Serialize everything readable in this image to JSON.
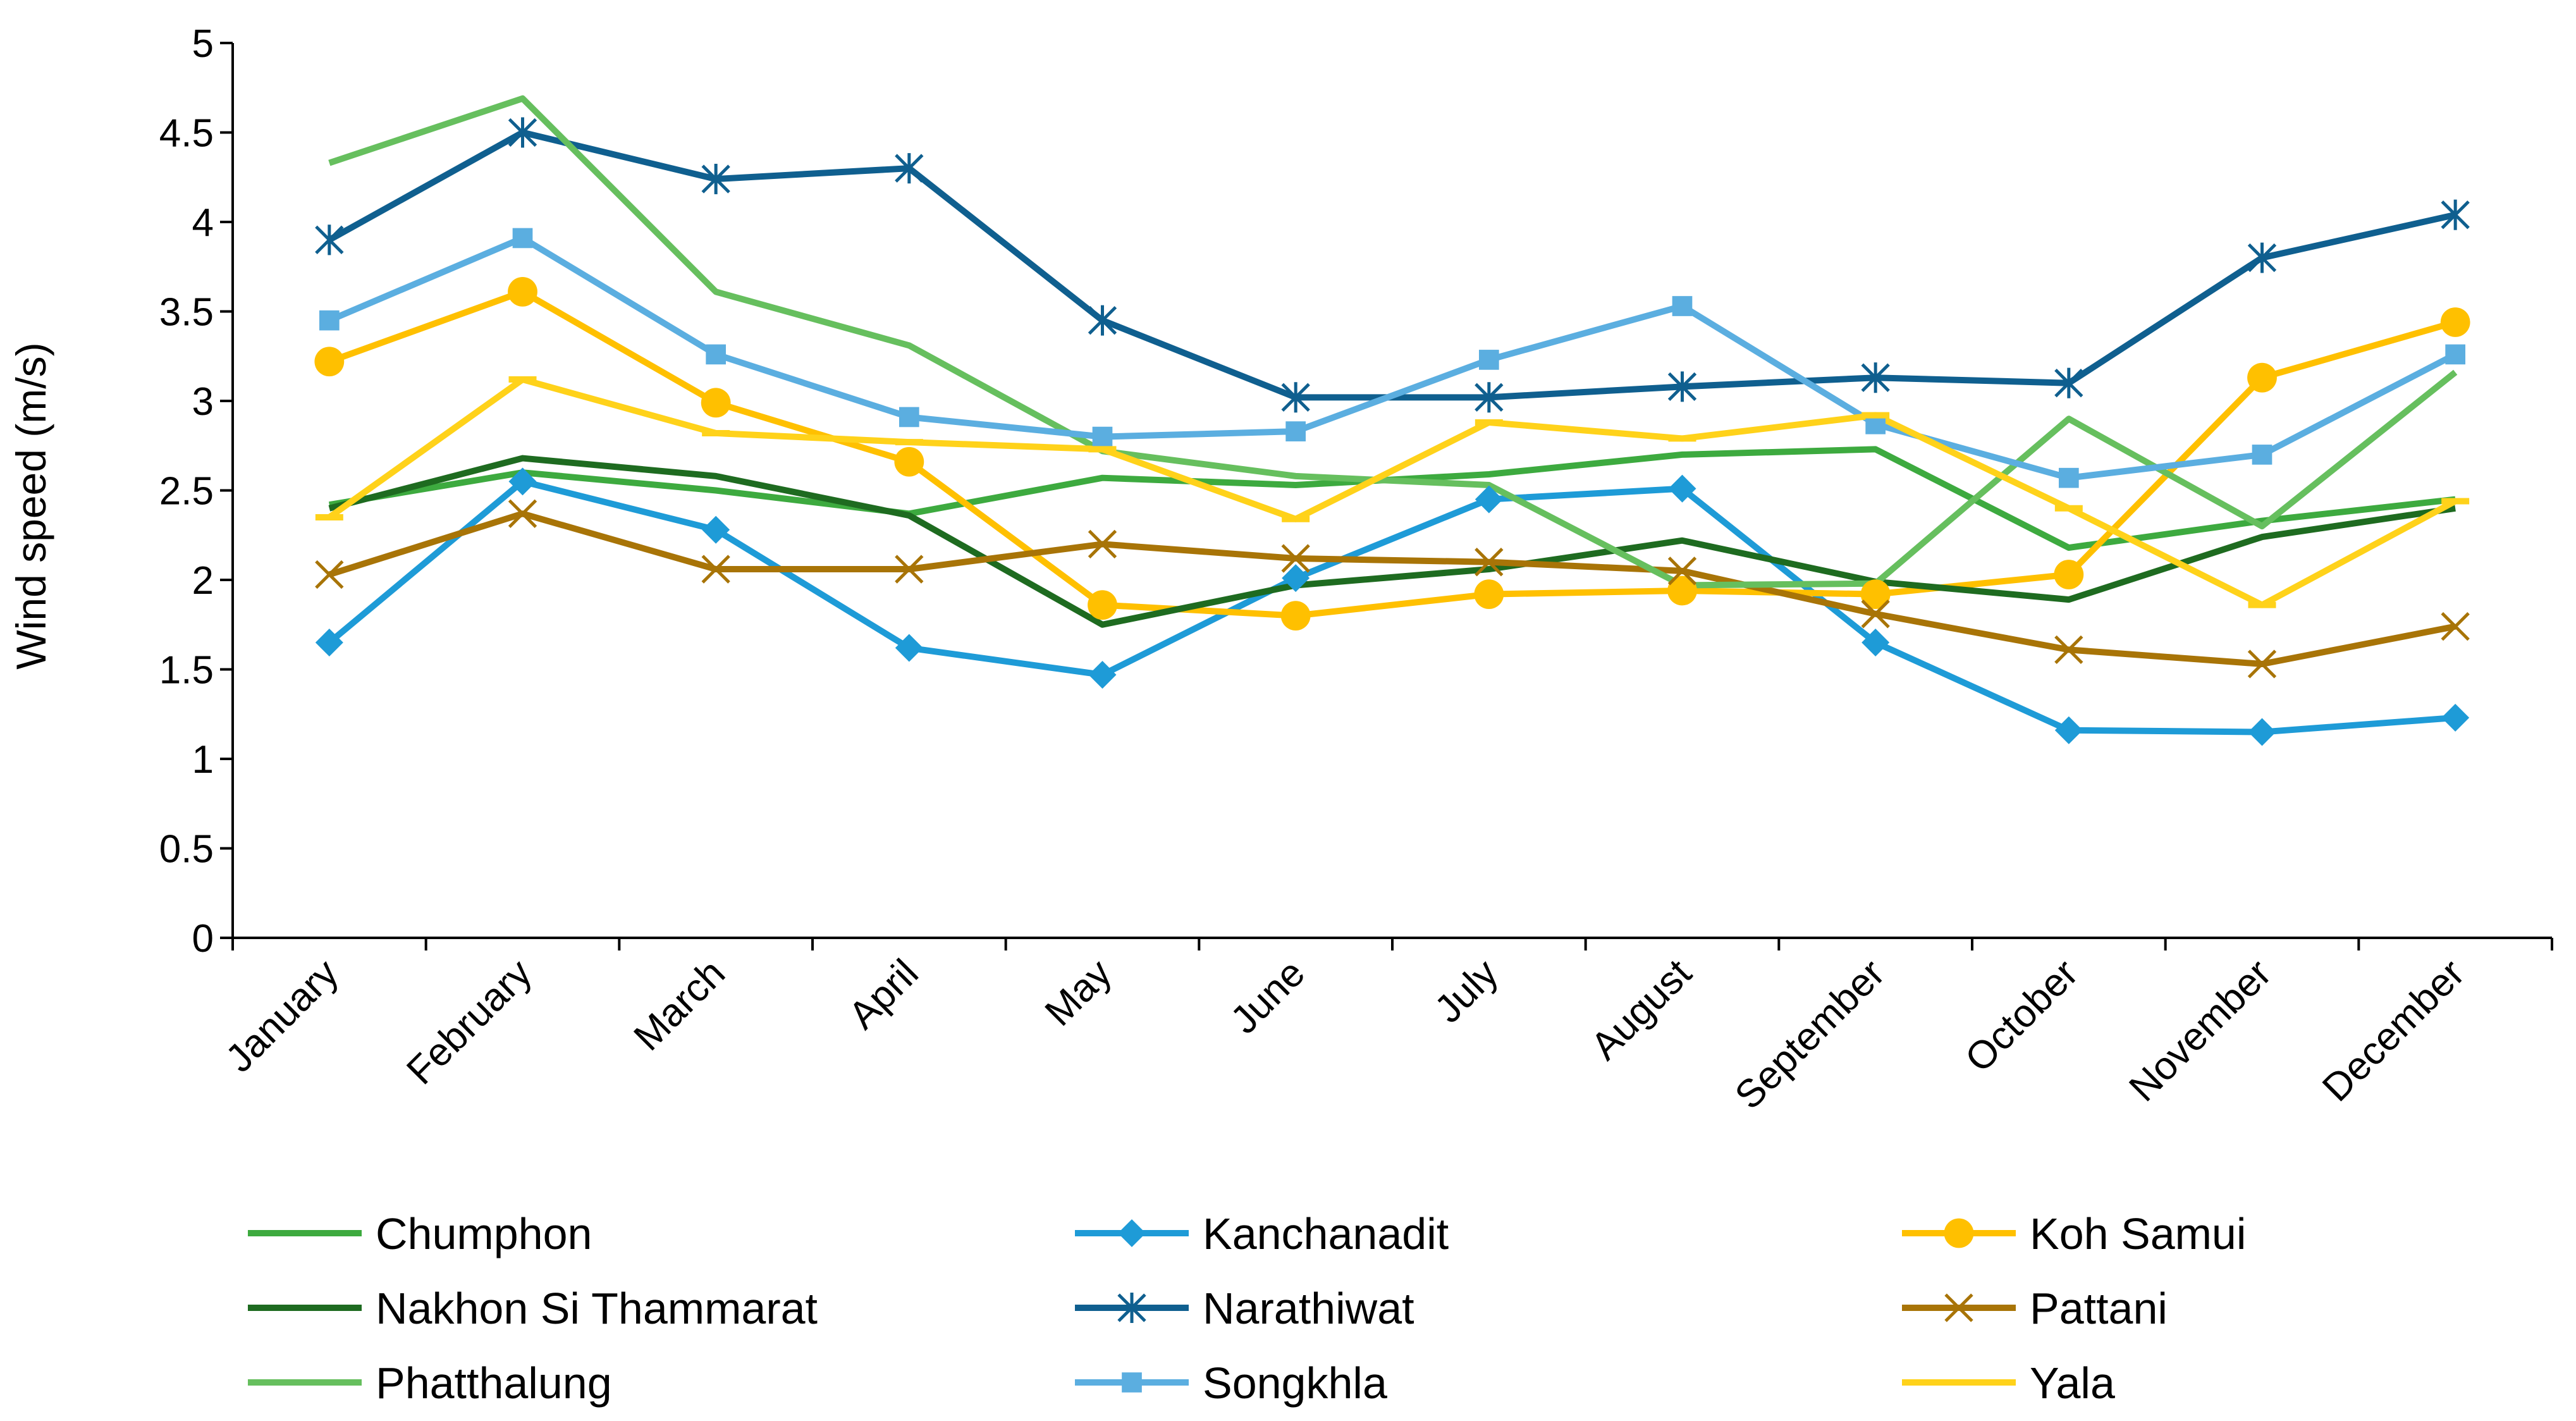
{
  "chart_data": {
    "type": "line",
    "title": "",
    "xlabel": "",
    "ylabel": "Wind speed (m/s)",
    "ylim": [
      0,
      5
    ],
    "yticks": [
      0,
      0.5,
      1,
      1.5,
      2,
      2.5,
      3,
      3.5,
      4,
      4.5,
      5
    ],
    "ytick_labels": [
      "0",
      "0.5",
      "1",
      "1.5",
      "2",
      "2.5",
      "3",
      "3.5",
      "4",
      "4.5",
      "5"
    ],
    "grid": false,
    "legend_position": "bottom",
    "categories": [
      "January",
      "February",
      "March",
      "April",
      "May",
      "June",
      "July",
      "August",
      "September",
      "October",
      "November",
      "December"
    ],
    "series": [
      {
        "name": "Chumphon",
        "color": "#3DAA3F",
        "marker": "none",
        "values": [
          2.42,
          2.6,
          2.5,
          2.37,
          2.57,
          2.53,
          2.59,
          2.7,
          2.73,
          2.18,
          2.33,
          2.45
        ]
      },
      {
        "name": "Kanchanadit",
        "color": "#1E9BD7",
        "marker": "diamond",
        "values": [
          1.65,
          2.55,
          2.28,
          1.62,
          1.47,
          2.01,
          2.45,
          2.51,
          1.65,
          1.16,
          1.15,
          1.23
        ]
      },
      {
        "name": "Koh Samui",
        "color": "#FFC000",
        "marker": "circle",
        "values": [
          3.22,
          3.61,
          2.99,
          2.66,
          1.86,
          1.8,
          1.92,
          1.94,
          1.92,
          2.03,
          3.13,
          3.44
        ]
      },
      {
        "name": "Nakhon Si Thammarat",
        "color": "#1E6B20",
        "marker": "none",
        "values": [
          2.4,
          2.68,
          2.58,
          2.36,
          1.75,
          1.97,
          2.06,
          2.22,
          1.99,
          1.89,
          2.24,
          2.4
        ]
      },
      {
        "name": "Narathiwat",
        "color": "#0F5F8F",
        "marker": "asterisk",
        "values": [
          3.9,
          4.5,
          4.24,
          4.3,
          3.45,
          3.02,
          3.02,
          3.08,
          3.13,
          3.1,
          3.8,
          4.04
        ]
      },
      {
        "name": "Pattani",
        "color": "#A87407",
        "marker": "x",
        "values": [
          2.03,
          2.37,
          2.06,
          2.06,
          2.2,
          2.12,
          2.1,
          2.05,
          1.81,
          1.61,
          1.53,
          1.74
        ]
      },
      {
        "name": "Phatthalung",
        "color": "#66BF5E",
        "marker": "none",
        "values": [
          4.33,
          4.69,
          3.61,
          3.31,
          2.72,
          2.58,
          2.53,
          1.97,
          1.98,
          2.9,
          2.3,
          3.16
        ]
      },
      {
        "name": "Songkhla",
        "color": "#5BAEE0",
        "marker": "square",
        "values": [
          3.45,
          3.91,
          3.26,
          2.91,
          2.8,
          2.83,
          3.23,
          3.53,
          2.87,
          2.57,
          2.7,
          3.26
        ]
      },
      {
        "name": "Yala",
        "color": "#FFD21A",
        "marker": "dash",
        "values": [
          2.35,
          3.12,
          2.82,
          2.77,
          2.73,
          2.34,
          2.88,
          2.79,
          2.92,
          2.4,
          1.86,
          2.44
        ]
      }
    ]
  }
}
